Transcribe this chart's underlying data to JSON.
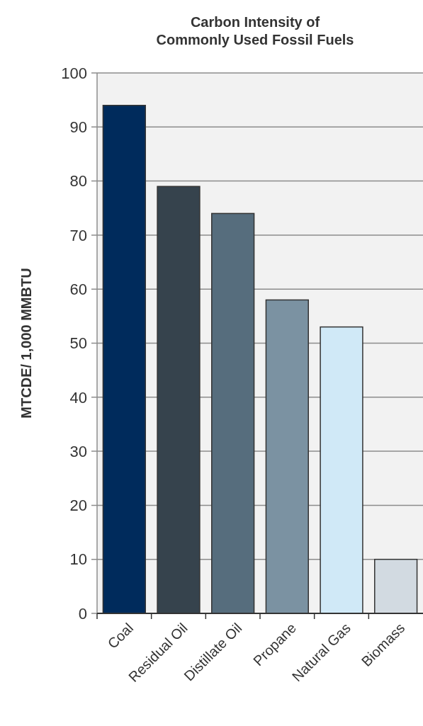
{
  "chart_data": {
    "type": "bar",
    "title": "Carbon Intensity of Commonly Used Fossil Fuels",
    "ylabel": "MTCDE/ 1,000 MMBTU",
    "categories": [
      "Coal",
      "Residual Oil",
      "Distillate Oil",
      "Propane",
      "Natural Gas",
      "Biomass"
    ],
    "values": [
      94,
      79,
      74,
      58,
      53,
      10
    ],
    "colors": [
      "#002b5c",
      "#36434d",
      "#566d7d",
      "#7b92a2",
      "#d0e9f7",
      "#d2dae1"
    ],
    "ylim": [
      0,
      100
    ],
    "yticks": [
      0,
      10,
      20,
      30,
      40,
      50,
      60,
      70,
      80,
      90,
      100
    ],
    "grid": "y"
  }
}
